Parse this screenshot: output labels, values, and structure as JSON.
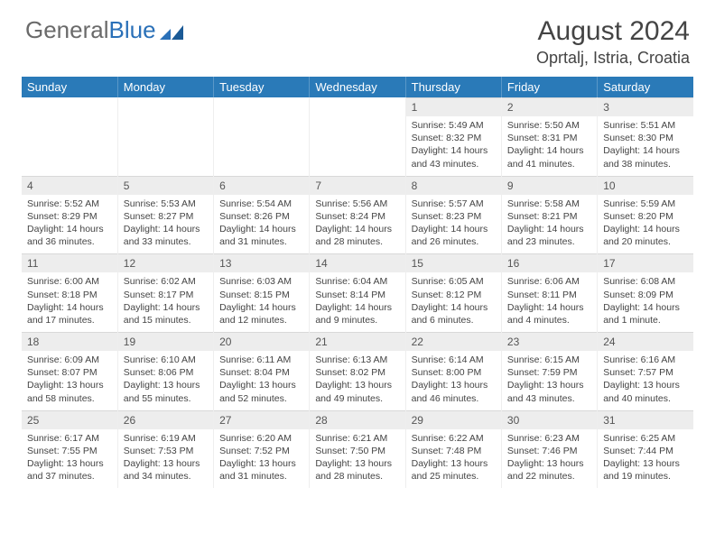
{
  "brand": {
    "part1": "General",
    "part2": "Blue"
  },
  "title": {
    "month": "August 2024",
    "location": "Oprtalj, Istria, Croatia"
  },
  "colors": {
    "header_bg": "#2a7ab8",
    "header_text": "#ffffff",
    "daynum_bg": "#ededed",
    "body_text": "#444444",
    "brand_gray": "#6a6a6a",
    "brand_blue": "#2a70b8"
  },
  "calendar": {
    "type": "table",
    "columns": [
      "Sunday",
      "Monday",
      "Tuesday",
      "Wednesday",
      "Thursday",
      "Friday",
      "Saturday"
    ],
    "first_weekday_index": 4,
    "days": [
      {
        "n": 1,
        "sunrise": "5:49 AM",
        "sunset": "8:32 PM",
        "dl_h": 14,
        "dl_m": 43
      },
      {
        "n": 2,
        "sunrise": "5:50 AM",
        "sunset": "8:31 PM",
        "dl_h": 14,
        "dl_m": 41
      },
      {
        "n": 3,
        "sunrise": "5:51 AM",
        "sunset": "8:30 PM",
        "dl_h": 14,
        "dl_m": 38
      },
      {
        "n": 4,
        "sunrise": "5:52 AM",
        "sunset": "8:29 PM",
        "dl_h": 14,
        "dl_m": 36
      },
      {
        "n": 5,
        "sunrise": "5:53 AM",
        "sunset": "8:27 PM",
        "dl_h": 14,
        "dl_m": 33
      },
      {
        "n": 6,
        "sunrise": "5:54 AM",
        "sunset": "8:26 PM",
        "dl_h": 14,
        "dl_m": 31
      },
      {
        "n": 7,
        "sunrise": "5:56 AM",
        "sunset": "8:24 PM",
        "dl_h": 14,
        "dl_m": 28
      },
      {
        "n": 8,
        "sunrise": "5:57 AM",
        "sunset": "8:23 PM",
        "dl_h": 14,
        "dl_m": 26
      },
      {
        "n": 9,
        "sunrise": "5:58 AM",
        "sunset": "8:21 PM",
        "dl_h": 14,
        "dl_m": 23
      },
      {
        "n": 10,
        "sunrise": "5:59 AM",
        "sunset": "8:20 PM",
        "dl_h": 14,
        "dl_m": 20
      },
      {
        "n": 11,
        "sunrise": "6:00 AM",
        "sunset": "8:18 PM",
        "dl_h": 14,
        "dl_m": 17
      },
      {
        "n": 12,
        "sunrise": "6:02 AM",
        "sunset": "8:17 PM",
        "dl_h": 14,
        "dl_m": 15
      },
      {
        "n": 13,
        "sunrise": "6:03 AM",
        "sunset": "8:15 PM",
        "dl_h": 14,
        "dl_m": 12
      },
      {
        "n": 14,
        "sunrise": "6:04 AM",
        "sunset": "8:14 PM",
        "dl_h": 14,
        "dl_m": 9
      },
      {
        "n": 15,
        "sunrise": "6:05 AM",
        "sunset": "8:12 PM",
        "dl_h": 14,
        "dl_m": 6
      },
      {
        "n": 16,
        "sunrise": "6:06 AM",
        "sunset": "8:11 PM",
        "dl_h": 14,
        "dl_m": 4
      },
      {
        "n": 17,
        "sunrise": "6:08 AM",
        "sunset": "8:09 PM",
        "dl_h": 14,
        "dl_m": 1
      },
      {
        "n": 18,
        "sunrise": "6:09 AM",
        "sunset": "8:07 PM",
        "dl_h": 13,
        "dl_m": 58
      },
      {
        "n": 19,
        "sunrise": "6:10 AM",
        "sunset": "8:06 PM",
        "dl_h": 13,
        "dl_m": 55
      },
      {
        "n": 20,
        "sunrise": "6:11 AM",
        "sunset": "8:04 PM",
        "dl_h": 13,
        "dl_m": 52
      },
      {
        "n": 21,
        "sunrise": "6:13 AM",
        "sunset": "8:02 PM",
        "dl_h": 13,
        "dl_m": 49
      },
      {
        "n": 22,
        "sunrise": "6:14 AM",
        "sunset": "8:00 PM",
        "dl_h": 13,
        "dl_m": 46
      },
      {
        "n": 23,
        "sunrise": "6:15 AM",
        "sunset": "7:59 PM",
        "dl_h": 13,
        "dl_m": 43
      },
      {
        "n": 24,
        "sunrise": "6:16 AM",
        "sunset": "7:57 PM",
        "dl_h": 13,
        "dl_m": 40
      },
      {
        "n": 25,
        "sunrise": "6:17 AM",
        "sunset": "7:55 PM",
        "dl_h": 13,
        "dl_m": 37
      },
      {
        "n": 26,
        "sunrise": "6:19 AM",
        "sunset": "7:53 PM",
        "dl_h": 13,
        "dl_m": 34
      },
      {
        "n": 27,
        "sunrise": "6:20 AM",
        "sunset": "7:52 PM",
        "dl_h": 13,
        "dl_m": 31
      },
      {
        "n": 28,
        "sunrise": "6:21 AM",
        "sunset": "7:50 PM",
        "dl_h": 13,
        "dl_m": 28
      },
      {
        "n": 29,
        "sunrise": "6:22 AM",
        "sunset": "7:48 PM",
        "dl_h": 13,
        "dl_m": 25
      },
      {
        "n": 30,
        "sunrise": "6:23 AM",
        "sunset": "7:46 PM",
        "dl_h": 13,
        "dl_m": 22
      },
      {
        "n": 31,
        "sunrise": "6:25 AM",
        "sunset": "7:44 PM",
        "dl_h": 13,
        "dl_m": 19
      }
    ],
    "labels": {
      "sunrise": "Sunrise:",
      "sunset": "Sunset:",
      "daylight": "Daylight:"
    }
  }
}
